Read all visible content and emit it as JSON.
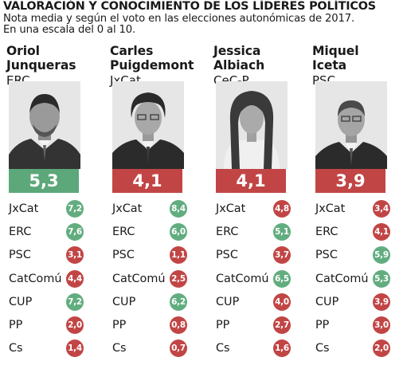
{
  "header": {
    "title": "VALORACIÓN Y CONOCIMIENTO DE LOS LÍDERES POLÍTICOS",
    "subtitle_line1": "Nota media y según el voto en las elecciones autonómicas de 2017.",
    "subtitle_line2": "En una escala del 0 al 10."
  },
  "colors": {
    "high": "#5ca87a",
    "low": "#c24545",
    "badge_green": "#62ad7f",
    "badge_red": "#c24545"
  },
  "chart_data": {
    "type": "table",
    "title": "VALORACIÓN Y CONOCIMIENTO DE LOS LÍDERES POLÍTICOS",
    "rows": [
      "JxCat",
      "ERC",
      "PSC",
      "CatComú",
      "CUP",
      "PP",
      "Cs"
    ],
    "leaders": [
      {
        "first": "Oriol",
        "last": "Junqueras",
        "party": "ERC",
        "score": "5,3",
        "score_level": "high",
        "ratings": [
          {
            "party": "JxCat",
            "value": "7,2",
            "color": "green"
          },
          {
            "party": "ERC",
            "value": "7,6",
            "color": "green"
          },
          {
            "party": "PSC",
            "value": "3,1",
            "color": "red"
          },
          {
            "party": "CatComú",
            "value": "4,4",
            "color": "red"
          },
          {
            "party": "CUP",
            "value": "7,2",
            "color": "green"
          },
          {
            "party": "PP",
            "value": "2,0",
            "color": "red"
          },
          {
            "party": "Cs",
            "value": "1,4",
            "color": "red"
          }
        ]
      },
      {
        "first": "Carles",
        "last": "Puigdemont",
        "party": "JxCat",
        "score": "4,1",
        "score_level": "low",
        "ratings": [
          {
            "party": "JxCat",
            "value": "8,4",
            "color": "green"
          },
          {
            "party": "ERC",
            "value": "6,0",
            "color": "green"
          },
          {
            "party": "PSC",
            "value": "1,1",
            "color": "red"
          },
          {
            "party": "CatComú",
            "value": "2,5",
            "color": "red"
          },
          {
            "party": "CUP",
            "value": "6,2",
            "color": "green"
          },
          {
            "party": "PP",
            "value": "0,8",
            "color": "red"
          },
          {
            "party": "Cs",
            "value": "0,7",
            "color": "red"
          }
        ]
      },
      {
        "first": "Jessica",
        "last": "Albiach",
        "party": "CeC-P",
        "score": "4,1",
        "score_level": "low",
        "ratings": [
          {
            "party": "JxCat",
            "value": "4,8",
            "color": "red"
          },
          {
            "party": "ERC",
            "value": "5,1",
            "color": "green"
          },
          {
            "party": "PSC",
            "value": "3,7",
            "color": "red"
          },
          {
            "party": "CatComú",
            "value": "6,5",
            "color": "green"
          },
          {
            "party": "CUP",
            "value": "4,0",
            "color": "red"
          },
          {
            "party": "PP",
            "value": "2,7",
            "color": "red"
          },
          {
            "party": "Cs",
            "value": "1,6",
            "color": "red"
          }
        ]
      },
      {
        "first": "Miquel",
        "last": "Iceta",
        "party": "PSC",
        "score": "3,9",
        "score_level": "low",
        "ratings": [
          {
            "party": "JxCat",
            "value": "3,4",
            "color": "red"
          },
          {
            "party": "ERC",
            "value": "4,1",
            "color": "red"
          },
          {
            "party": "PSC",
            "value": "5,9",
            "color": "green"
          },
          {
            "party": "CatComú",
            "value": "5,3",
            "color": "green"
          },
          {
            "party": "CUP",
            "value": "3,9",
            "color": "red"
          },
          {
            "party": "PP",
            "value": "3,0",
            "color": "red"
          },
          {
            "party": "Cs",
            "value": "2,0",
            "color": "red"
          }
        ]
      }
    ]
  }
}
